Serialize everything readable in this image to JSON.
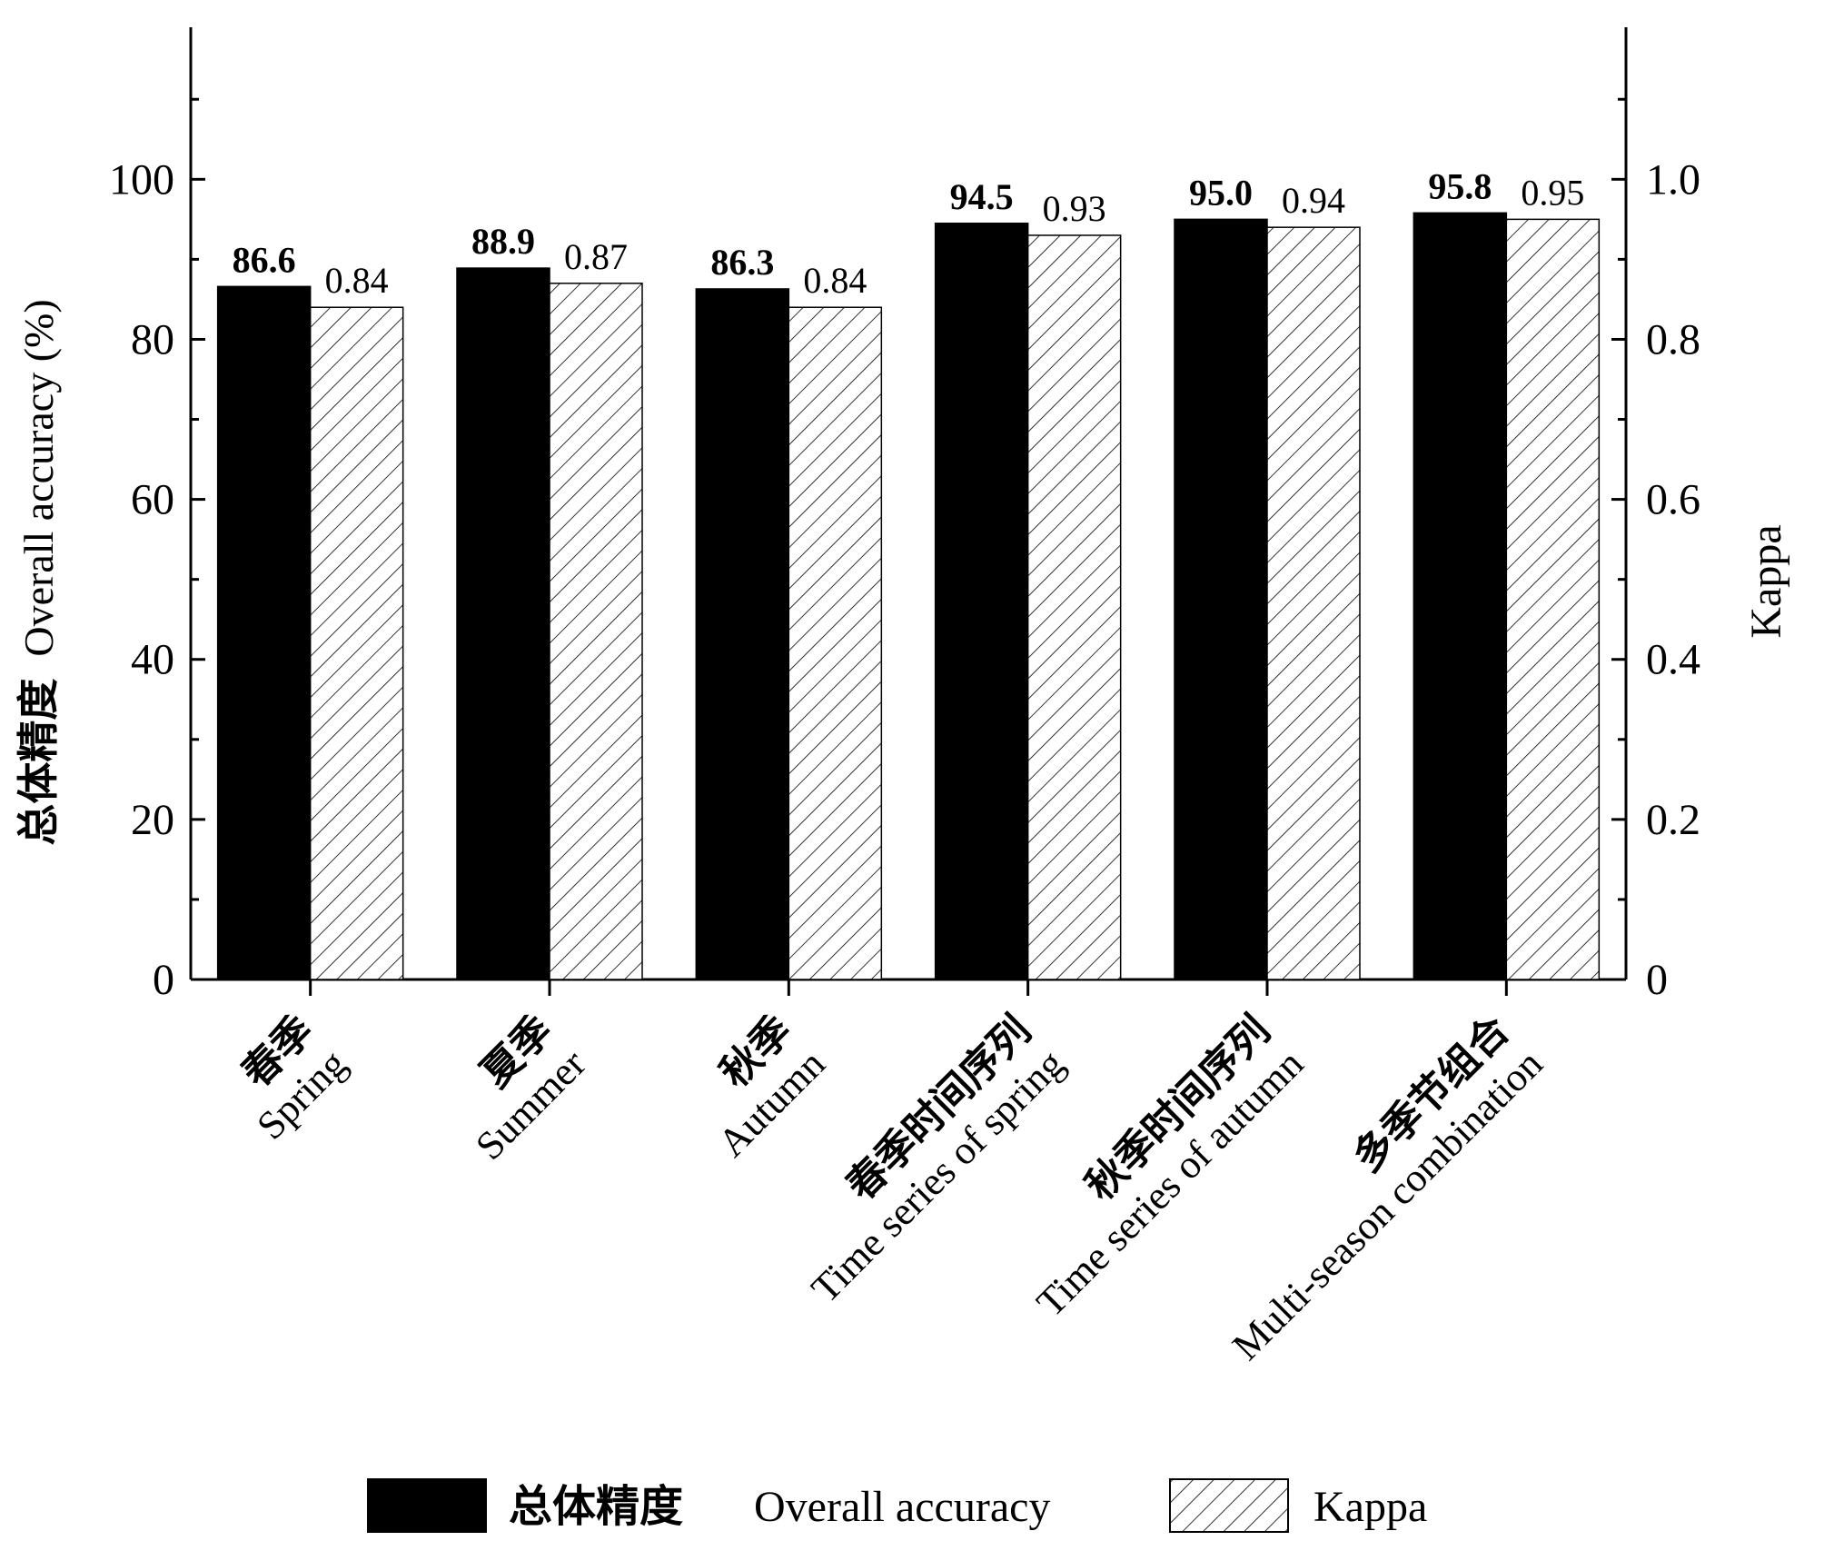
{
  "chart_data": {
    "type": "bar",
    "categories": [
      {
        "zh": "春季",
        "en": "Spring"
      },
      {
        "zh": "夏季",
        "en": "Summer"
      },
      {
        "zh": "秋季",
        "en": "Autumn"
      },
      {
        "zh": "春季时间序列",
        "en": "Time series of spring"
      },
      {
        "zh": "秋季时间序列",
        "en": "Time series of autumn"
      },
      {
        "zh": "多季节组合",
        "en": "Multi-season combination"
      }
    ],
    "series": [
      {
        "name_zh": "总体精度",
        "name_en": "Overall accuracy",
        "axis": "left",
        "fill": "#000000",
        "values": [
          86.6,
          88.9,
          86.3,
          94.5,
          95.0,
          95.8
        ],
        "labels": [
          "86.6",
          "88.9",
          "86.3",
          "94.5",
          "95.0",
          "95.8"
        ]
      },
      {
        "name": "Kappa",
        "axis": "right",
        "fill": "hatch",
        "values": [
          0.84,
          0.87,
          0.84,
          0.93,
          0.94,
          0.95
        ],
        "labels": [
          "0.84",
          "0.87",
          "0.84",
          "0.93",
          "0.94",
          "0.95"
        ]
      }
    ],
    "ylabel_left_zh": "总体精度",
    "ylabel_left_en": "Overall accuracy (%)",
    "ylabel_right": "Kappa",
    "ylim_left": [
      0,
      119
    ],
    "ylim_right": [
      0,
      1.19
    ],
    "left_ticks": [
      "0",
      "20",
      "40",
      "60",
      "80",
      "100"
    ],
    "left_tick_values": [
      0,
      20,
      40,
      60,
      80,
      100
    ],
    "right_ticks": [
      "0",
      "0.2",
      "0.4",
      "0.6",
      "0.8",
      "1.0"
    ],
    "right_tick_values": [
      0,
      0.2,
      0.4,
      0.6,
      0.8,
      1.0
    ],
    "minor_ticks_left": [
      10,
      30,
      50,
      70,
      90,
      110
    ],
    "legend_position": "bottom-center",
    "grid": false
  }
}
